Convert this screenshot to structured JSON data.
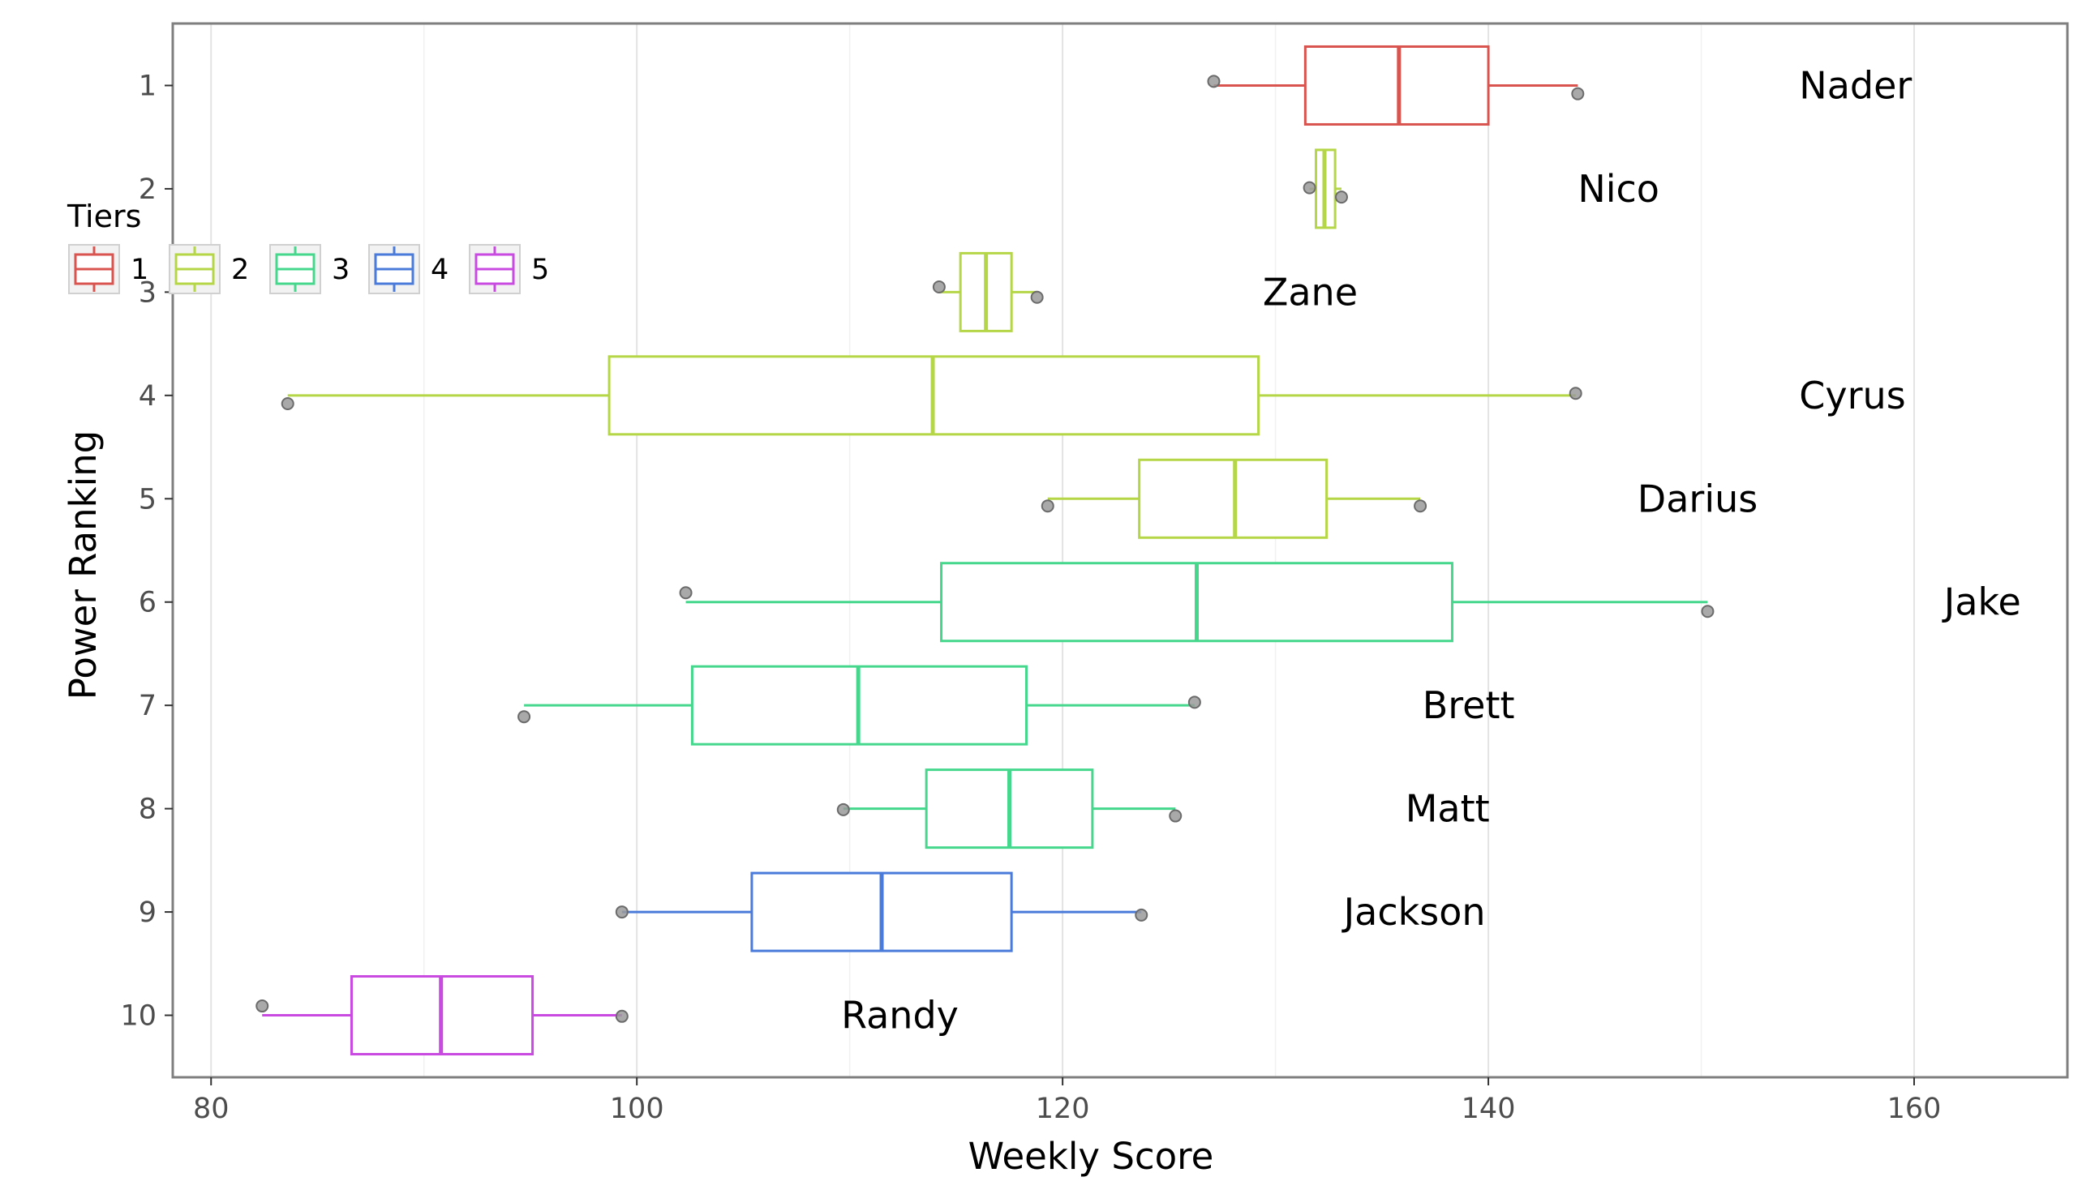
{
  "chart_data": {
    "type": "boxplot",
    "xlabel": "Weekly Score",
    "ylabel": "Power Ranking",
    "xlim": [
      78.2,
      167.2
    ],
    "ylim": [
      0.4,
      10.6
    ],
    "x_ticks": [
      80,
      100,
      120,
      140,
      160
    ],
    "y_ticks": [
      1,
      2,
      3,
      4,
      5,
      6,
      7,
      8,
      9,
      10
    ],
    "legend": {
      "title": "Tiers",
      "position": "top-left",
      "entries": [
        "1",
        "2",
        "3",
        "4",
        "5"
      ]
    },
    "tier_colors": {
      "1": "#d9534f",
      "2": "#b5d646",
      "3": "#45d88d",
      "4": "#4a7bdb",
      "5": "#c94ae0"
    },
    "grid": true,
    "teams": [
      {
        "rank": 1,
        "name": "Nader",
        "tier": "1",
        "whisker_low": 127.1,
        "q1": 131.4,
        "median": 135.8,
        "q3": 140.0,
        "whisker_high": 144.2,
        "points": [
          {
            "x": 127.1,
            "y": 0.96
          },
          {
            "x": 144.2,
            "y": 1.08
          }
        ],
        "label_x": 154.6
      },
      {
        "rank": 2,
        "name": "Nico",
        "tier": "2",
        "whisker_low": 131.6,
        "q1": 131.9,
        "median": 132.3,
        "q3": 132.8,
        "whisker_high": 133.1,
        "points": [
          {
            "x": 131.6,
            "y": 1.99
          },
          {
            "x": 133.1,
            "y": 2.08
          }
        ],
        "label_x": 144.2
      },
      {
        "rank": 3,
        "name": "Zane",
        "tier": "2",
        "whisker_low": 114.2,
        "q1": 115.2,
        "median": 116.4,
        "q3": 117.6,
        "whisker_high": 118.8,
        "points": [
          {
            "x": 114.2,
            "y": 2.95
          },
          {
            "x": 118.8,
            "y": 3.05
          }
        ],
        "label_x": 129.4
      },
      {
        "rank": 4,
        "name": "Cyrus",
        "tier": "2",
        "whisker_low": 83.6,
        "q1": 98.7,
        "median": 113.9,
        "q3": 129.2,
        "whisker_high": 144.1,
        "points": [
          {
            "x": 83.6,
            "y": 4.08
          },
          {
            "x": 144.1,
            "y": 3.98
          }
        ],
        "label_x": 154.6
      },
      {
        "rank": 5,
        "name": "Darius",
        "tier": "2",
        "whisker_low": 119.3,
        "q1": 123.6,
        "median": 128.1,
        "q3": 132.4,
        "whisker_high": 136.8,
        "points": [
          {
            "x": 119.3,
            "y": 5.07
          },
          {
            "x": 136.8,
            "y": 5.07
          }
        ],
        "label_x": 147.0
      },
      {
        "rank": 6,
        "name": "Jake",
        "tier": "3",
        "whisker_low": 102.3,
        "q1": 114.3,
        "median": 126.3,
        "q3": 138.3,
        "whisker_high": 150.3,
        "points": [
          {
            "x": 102.3,
            "y": 5.91
          },
          {
            "x": 150.3,
            "y": 6.09
          }
        ],
        "label_x": 161.4
      },
      {
        "rank": 7,
        "name": "Brett",
        "tier": "3",
        "whisker_low": 94.7,
        "q1": 102.6,
        "median": 110.4,
        "q3": 118.3,
        "whisker_high": 126.2,
        "points": [
          {
            "x": 94.7,
            "y": 7.11
          },
          {
            "x": 126.2,
            "y": 6.97
          }
        ],
        "label_x": 136.9
      },
      {
        "rank": 8,
        "name": "Matt",
        "tier": "3",
        "whisker_low": 109.7,
        "q1": 113.6,
        "median": 117.5,
        "q3": 121.4,
        "whisker_high": 125.3,
        "points": [
          {
            "x": 109.7,
            "y": 8.01
          },
          {
            "x": 125.3,
            "y": 8.07
          }
        ],
        "label_x": 136.1
      },
      {
        "rank": 9,
        "name": "Jackson",
        "tier": "4",
        "whisker_low": 99.3,
        "q1": 105.4,
        "median": 111.5,
        "q3": 117.6,
        "whisker_high": 123.7,
        "points": [
          {
            "x": 99.3,
            "y": 9.0
          },
          {
            "x": 123.7,
            "y": 9.03
          }
        ],
        "label_x": 133.2
      },
      {
        "rank": 10,
        "name": "Randy",
        "tier": "5",
        "whisker_low": 82.4,
        "q1": 86.6,
        "median": 90.8,
        "q3": 95.1,
        "whisker_high": 99.3,
        "points": [
          {
            "x": 82.4,
            "y": 9.91
          },
          {
            "x": 99.3,
            "y": 10.01
          }
        ],
        "label_x": 109.6
      }
    ]
  }
}
